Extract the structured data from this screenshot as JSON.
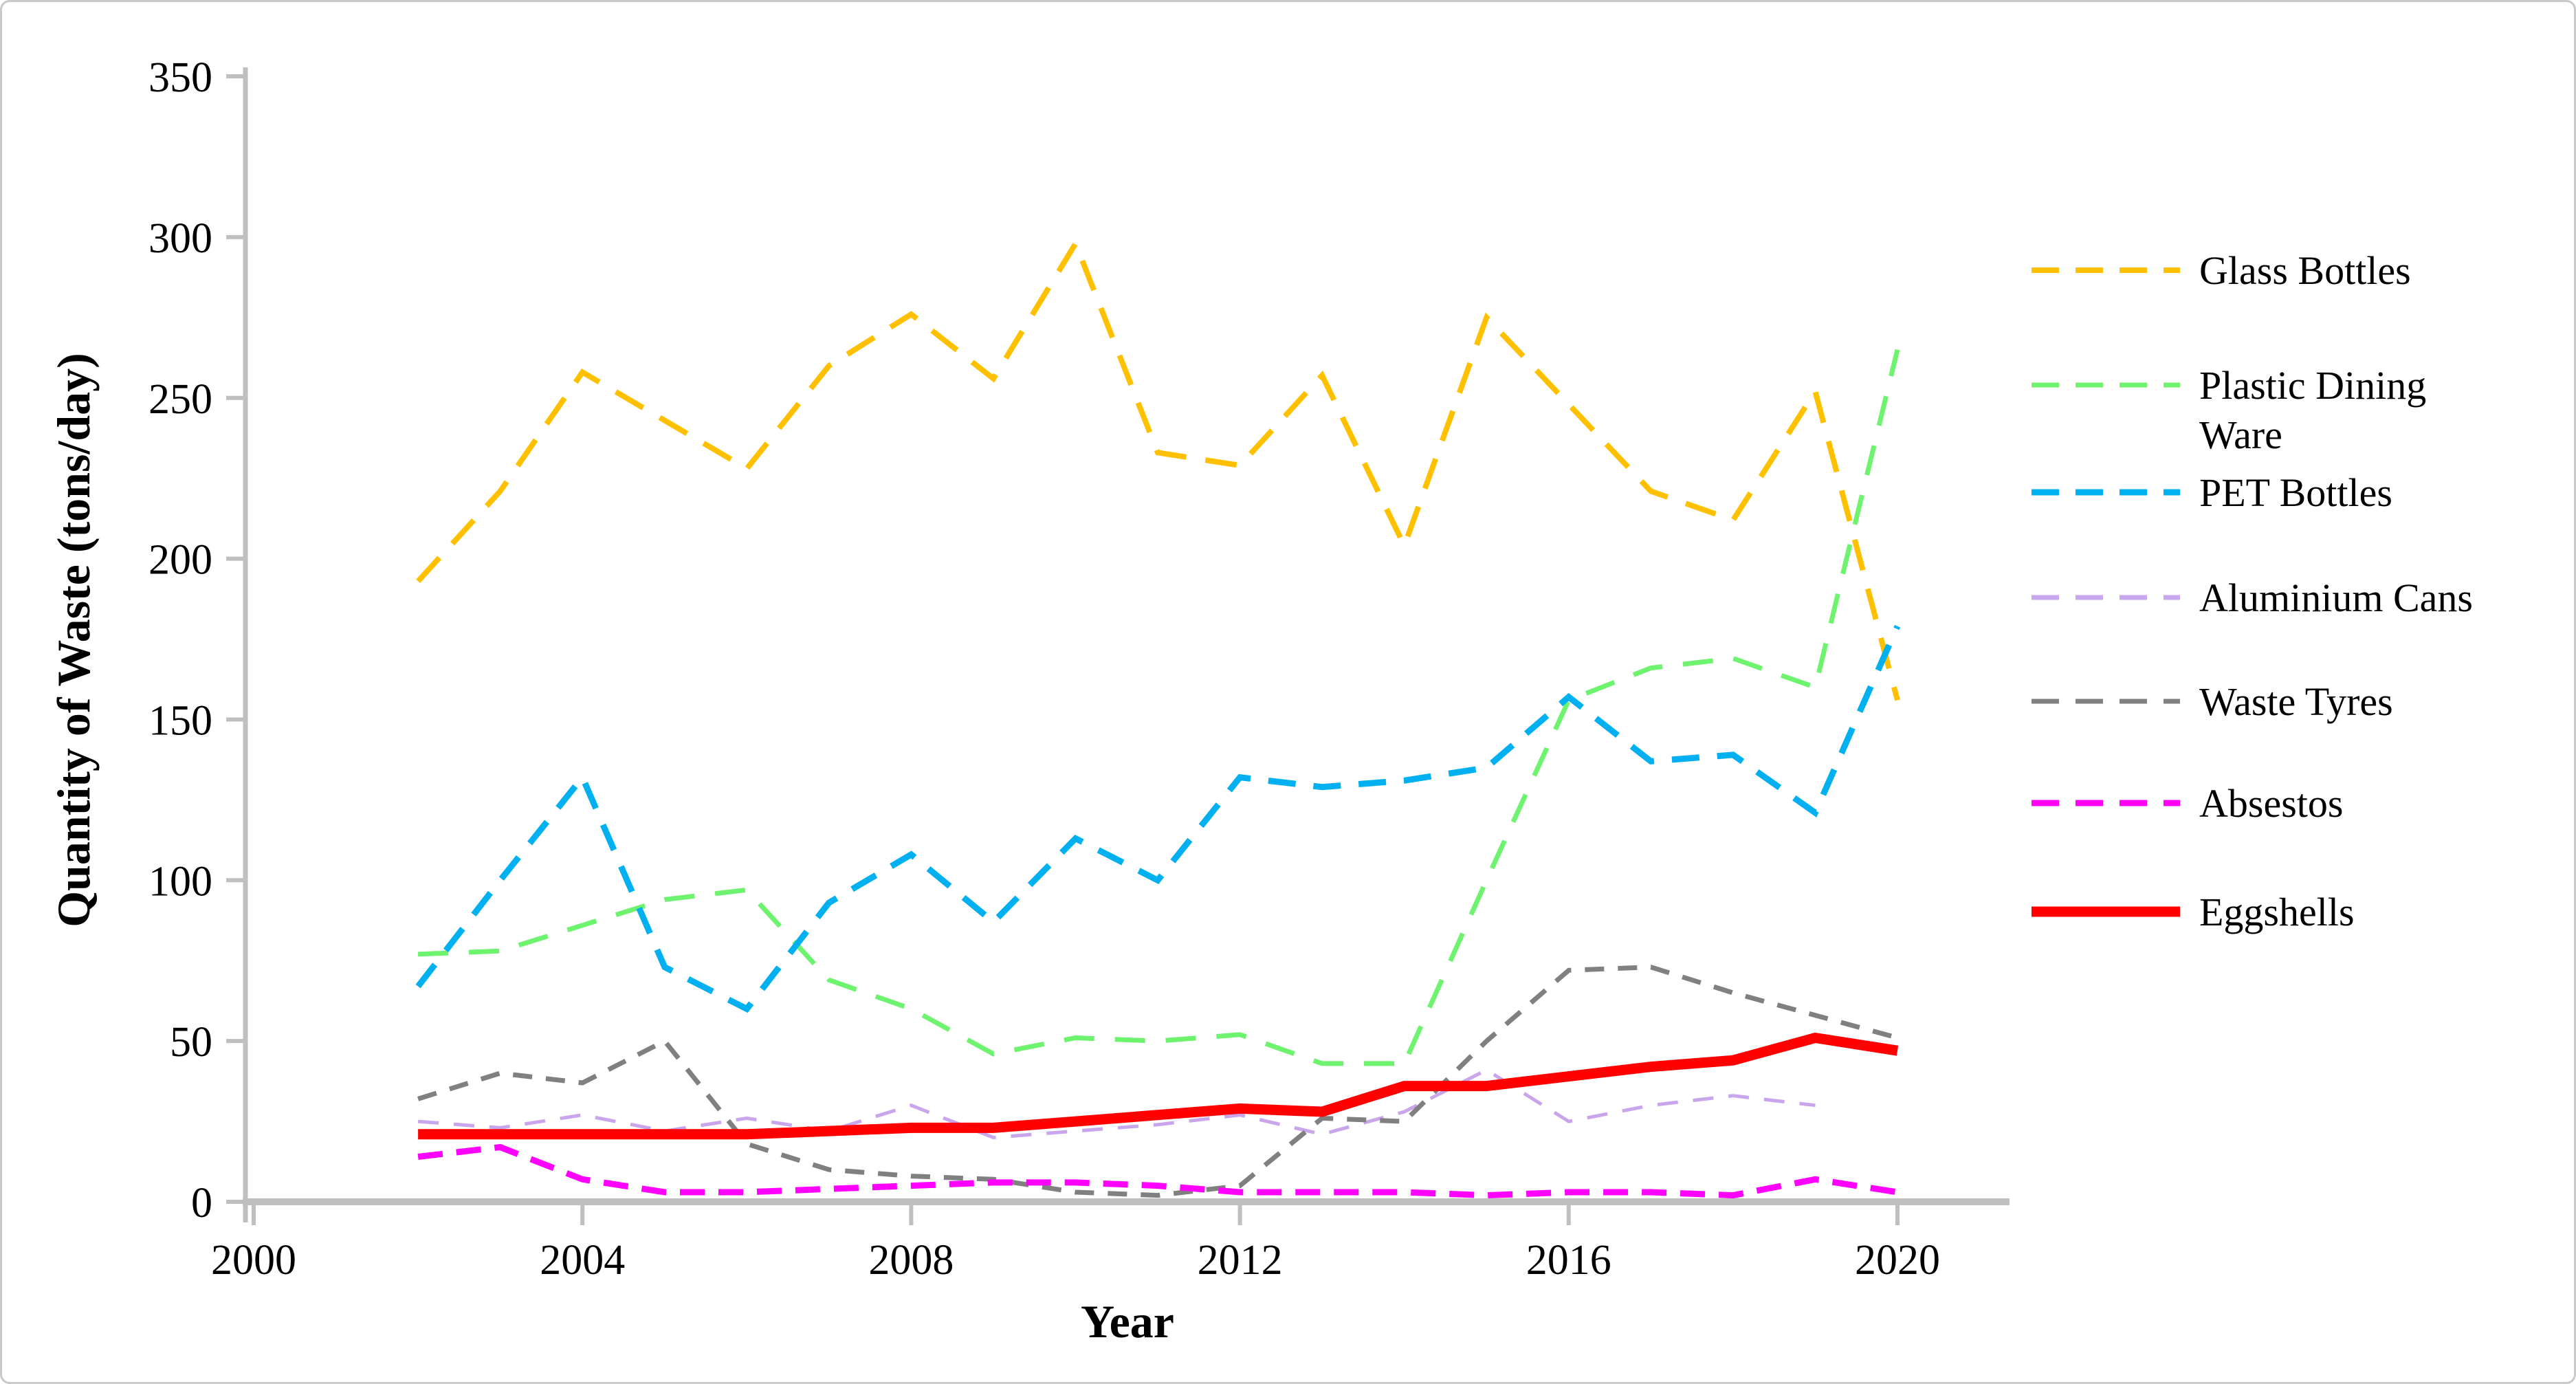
{
  "chart_data": {
    "type": "line",
    "title": "",
    "xlabel": "Year",
    "ylabel": "Quantity of Waste (tons/day)",
    "x": [
      2002,
      2003,
      2004,
      2005,
      2006,
      2007,
      2008,
      2009,
      2010,
      2011,
      2012,
      2013,
      2014,
      2015,
      2016,
      2017,
      2018,
      2019,
      2020
    ],
    "xticks": [
      2000,
      2004,
      2008,
      2012,
      2016,
      2020
    ],
    "yticks": [
      0,
      50,
      100,
      150,
      200,
      250,
      300,
      350
    ],
    "xlim": [
      2000,
      2022
    ],
    "ylim": [
      0,
      350
    ],
    "grid": false,
    "legend_position": "right",
    "axis_color": "#bfbfbf",
    "series": [
      {
        "name": "Glass Bottles",
        "label_lines": [
          "Glass Bottles"
        ],
        "color": "#FFC000",
        "style": "dashed",
        "width": 8,
        "dash": "46 28",
        "values": [
          193,
          221,
          258,
          243,
          228,
          260,
          276,
          256,
          298,
          233,
          229,
          257,
          204,
          275,
          248,
          221,
          212,
          252,
          156
        ]
      },
      {
        "name": "Plastic Dining Ware",
        "label_lines": [
          "Plastic Dining",
          "Ware"
        ],
        "color": "#6EF36E",
        "style": "dashed",
        "width": 7,
        "dash": "44 30",
        "values": [
          77,
          78,
          86,
          94,
          97,
          69,
          60,
          46,
          51,
          50,
          52,
          43,
          43,
          100,
          156,
          166,
          169,
          160,
          265
        ]
      },
      {
        "name": "PET Bottles",
        "label_lines": [
          "PET Bottles"
        ],
        "color": "#00B0F0",
        "style": "dashed",
        "width": 9,
        "dash": "40 26",
        "values": [
          67,
          100,
          132,
          73,
          60,
          93,
          108,
          87,
          113,
          100,
          132,
          129,
          131,
          135,
          157,
          137,
          139,
          121,
          179
        ]
      },
      {
        "name": "Aluminium Cans",
        "label_lines": [
          "Aluminium Cans"
        ],
        "color": "#C9A5EC",
        "style": "dashed",
        "width": 5,
        "dash": "30 22",
        "values": [
          25,
          23,
          27,
          22,
          26,
          22,
          30,
          20,
          22,
          24,
          27,
          21,
          28,
          41,
          25,
          30,
          33,
          30,
          null
        ]
      },
      {
        "name": "Waste Tyres",
        "label_lines": [
          "Waste Tyres"
        ],
        "color": "#808080",
        "style": "dashed",
        "width": 7,
        "dash": "28 20",
        "values": [
          32,
          40,
          37,
          50,
          18,
          10,
          8,
          7,
          3,
          2,
          5,
          26,
          25,
          50,
          72,
          73,
          65,
          58,
          51
        ]
      },
      {
        "name": "Absestos",
        "label_lines": [
          "Absestos"
        ],
        "color": "#FF00FF",
        "style": "dashed",
        "width": 9,
        "dash": "36 20",
        "values": [
          14,
          17,
          7,
          3,
          3,
          4,
          5,
          6,
          6,
          5,
          3,
          3,
          3,
          2,
          3,
          3,
          2,
          7,
          3
        ]
      },
      {
        "name": "Eggshells",
        "label_lines": [
          "Eggshells"
        ],
        "color": "#FF0000",
        "style": "solid",
        "width": 15,
        "dash": null,
        "values": [
          21,
          21,
          21,
          21,
          21,
          22,
          23,
          23,
          25,
          27,
          29,
          28,
          36,
          36,
          39,
          42,
          44,
          51,
          47
        ]
      }
    ]
  }
}
